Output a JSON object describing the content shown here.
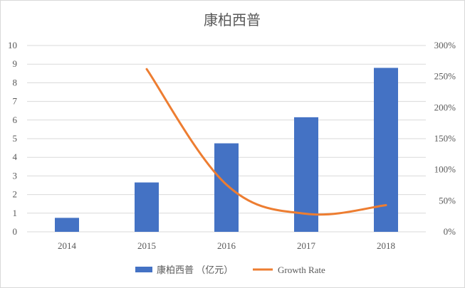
{
  "chart_data": {
    "type": "bar",
    "title": "康柏西普",
    "categories": [
      "2014",
      "2015",
      "2016",
      "2017",
      "2018"
    ],
    "series": [
      {
        "name": "康柏西普 （亿元）",
        "type": "bar",
        "axis": "left",
        "color": "#4472C4",
        "values": [
          0.75,
          2.65,
          4.75,
          6.15,
          8.8
        ]
      },
      {
        "name": "Growth Rate",
        "type": "line",
        "axis": "right",
        "color": "#ED7D31",
        "values": [
          null,
          2.62,
          0.76,
          0.29,
          0.43
        ]
      }
    ],
    "y_left": {
      "min": 0,
      "max": 10,
      "ticks": [
        "0",
        "1",
        "2",
        "3",
        "4",
        "5",
        "6",
        "7",
        "8",
        "9",
        "10"
      ]
    },
    "y_right": {
      "min": 0,
      "max": 3,
      "ticks": [
        "0%",
        "50%",
        "100%",
        "150%",
        "200%",
        "250%",
        "300%"
      ]
    },
    "grid": true,
    "legend_position": "bottom"
  }
}
